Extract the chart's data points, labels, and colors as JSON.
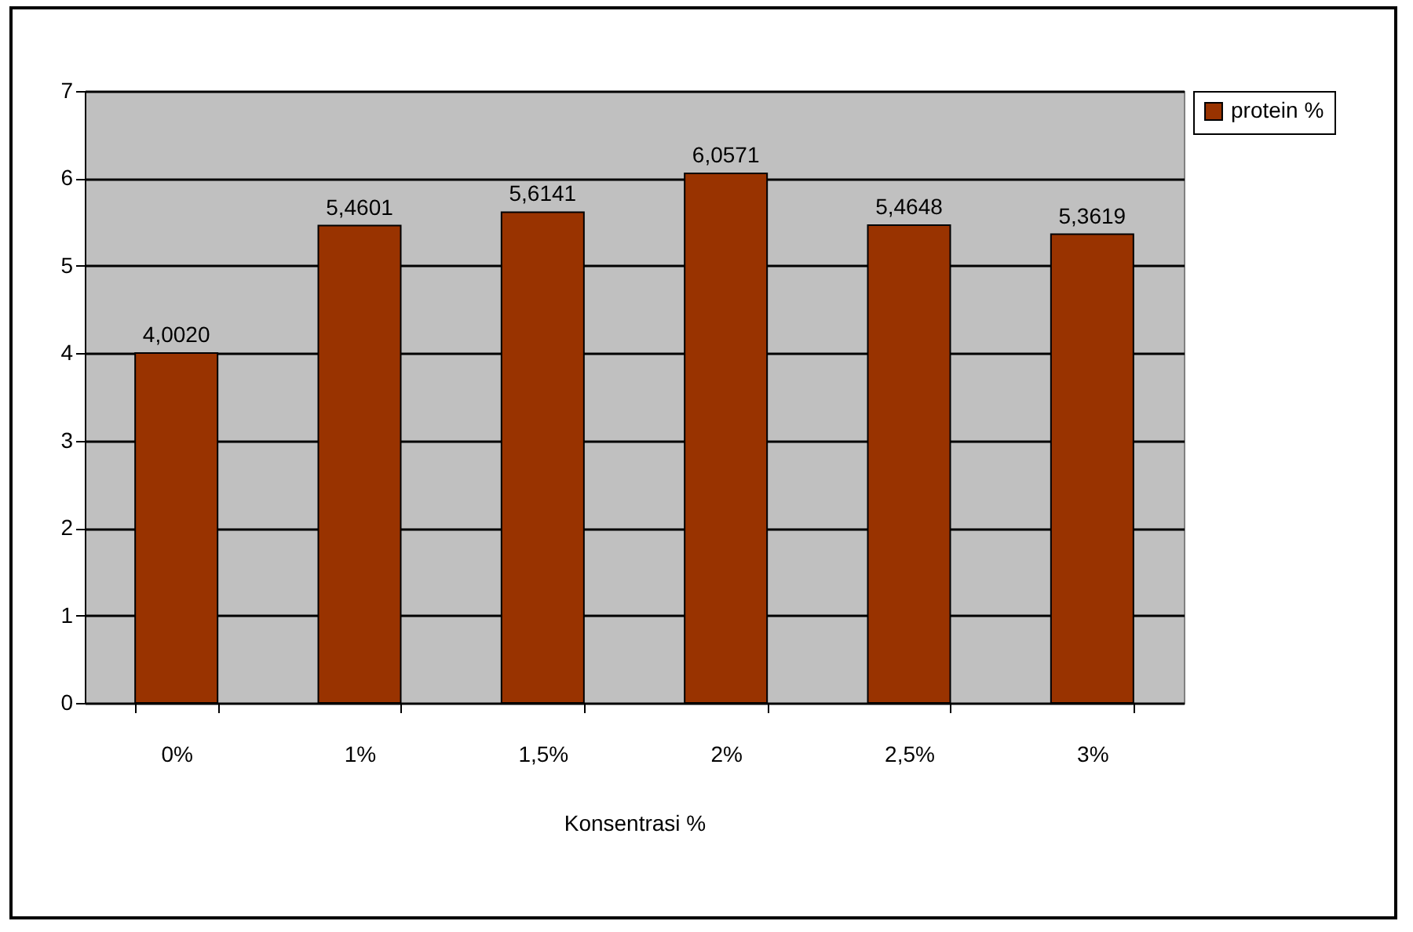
{
  "chart_data": {
    "type": "bar",
    "xlabel": "Konsentrasi %",
    "categories": [
      "0%",
      "1%",
      "1,5%",
      "2%",
      "2,5%",
      "3%"
    ],
    "series": [
      {
        "name": "protein %",
        "color": "#993300",
        "values": [
          4.002,
          5.4601,
          5.6141,
          6.0571,
          5.4648,
          5.3619
        ],
        "value_labels": [
          "4,0020",
          "5,4601",
          "5,6141",
          "6,0571",
          "5,4648",
          "5,3619"
        ]
      }
    ],
    "ylim": [
      0,
      7
    ],
    "yticks": [
      0,
      1,
      2,
      3,
      4,
      5,
      6,
      7
    ],
    "grid": "y",
    "legend": "right"
  }
}
